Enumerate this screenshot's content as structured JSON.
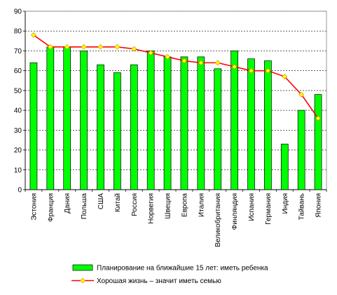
{
  "chart_data": {
    "type": "bar",
    "categories": [
      "Эстония",
      "Франция",
      "Дания",
      "Польша",
      "США",
      "Китай",
      "Россия",
      "Норвегия",
      "Швеция",
      "Европа",
      "Италия",
      "Великобритания",
      "Финляндия",
      "Испания",
      "Германия",
      "Индия",
      "Тайвань",
      "Япония"
    ],
    "series": [
      {
        "name": "Планирование на ближайшие 15 лет: иметь ребенка",
        "kind": "bar",
        "color": "#00ff00",
        "values": [
          64,
          72,
          72,
          70,
          63,
          59,
          63,
          70,
          67,
          67,
          67,
          61,
          70,
          66,
          65,
          23,
          40,
          48
        ]
      },
      {
        "name": "Хорошая жизнь – значит иметь семью",
        "kind": "line",
        "color": "#ff0000",
        "marker_color": "#ffff00",
        "values": [
          78,
          72,
          72,
          72,
          72,
          72,
          71,
          69,
          67,
          65,
          64,
          64,
          62,
          60,
          60,
          57,
          48,
          36
        ]
      }
    ],
    "ylim": [
      0,
      90
    ],
    "yticks": [
      0,
      10,
      20,
      30,
      40,
      50,
      60,
      70,
      80,
      90
    ],
    "grid": true,
    "legend_position": "bottom"
  }
}
